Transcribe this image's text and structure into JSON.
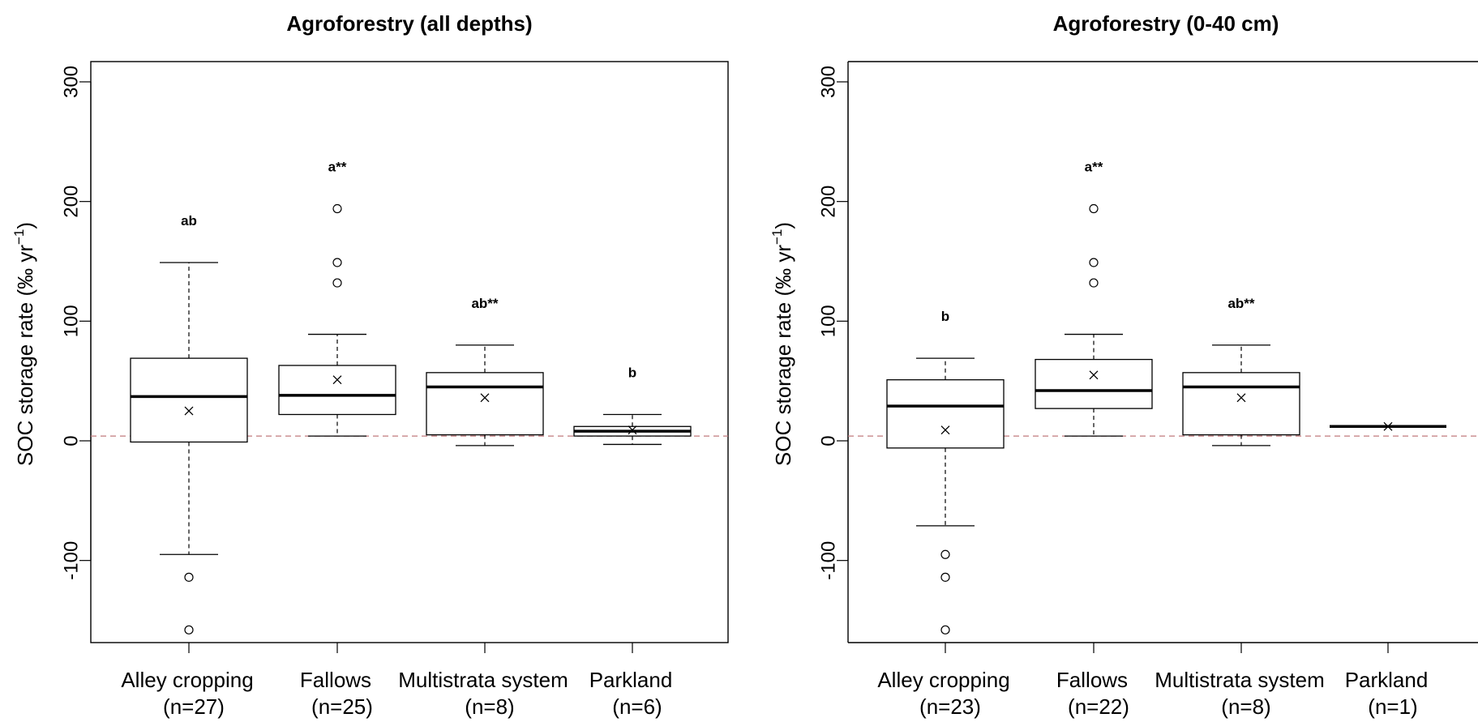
{
  "chart_data": [
    {
      "type": "box",
      "title": "Agroforestry (all depths)",
      "ylabel_main": "SOC storage rate (‰ yr",
      "ylabel_sup": "−1",
      "ylabel_close": ")",
      "ylim": [
        -165,
        320
      ],
      "yticks": [
        -100,
        0,
        100,
        200,
        300
      ],
      "ytick_labels": [
        "-100",
        "0",
        "100",
        "200",
        "300"
      ],
      "reference_line": 4,
      "categories": [
        {
          "label": "Alley cropping",
          "n": "(n=27)",
          "sig": "ab",
          "whisker_low": -95,
          "q1": -1,
          "median": 37,
          "q3": 69,
          "whisker_high": 149,
          "mean": 25,
          "outliers": [
            -114,
            -158
          ]
        },
        {
          "label": "Fallows",
          "n": "(n=25)",
          "sig": "a**",
          "whisker_low": 4,
          "q1": 22,
          "median": 38,
          "q3": 63,
          "whisker_high": 89,
          "mean": 51,
          "outliers": [
            194,
            149,
            132
          ]
        },
        {
          "label": "Multistrata system",
          "n": "(n=8)",
          "sig": "ab**",
          "whisker_low": -4,
          "q1": 5,
          "median": 45,
          "q3": 57,
          "whisker_high": 80,
          "mean": 36,
          "outliers": []
        },
        {
          "label": "Parkland",
          "n": "(n=6)",
          "sig": "b",
          "whisker_low": -3,
          "q1": 4,
          "median": 8,
          "q3": 12,
          "whisker_high": 22,
          "mean": 9,
          "outliers": []
        }
      ]
    },
    {
      "type": "box",
      "title": "Agroforestry (0-40 cm)",
      "ylabel_main": "SOC storage rate (‰ yr",
      "ylabel_sup": "−1",
      "ylabel_close": ")",
      "ylim": [
        -165,
        320
      ],
      "yticks": [
        -100,
        0,
        100,
        200,
        300
      ],
      "ytick_labels": [
        "-100",
        "0",
        "100",
        "200",
        "300"
      ],
      "reference_line": 4,
      "categories": [
        {
          "label": "Alley cropping",
          "n": "(n=23)",
          "sig": "b",
          "whisker_low": -71,
          "q1": -6,
          "median": 29,
          "q3": 51,
          "whisker_high": 69,
          "mean": 9,
          "outliers": [
            -95,
            -114,
            -158
          ]
        },
        {
          "label": "Fallows",
          "n": "(n=22)",
          "sig": "a**",
          "whisker_low": 4,
          "q1": 27,
          "median": 42,
          "q3": 68,
          "whisker_high": 89,
          "mean": 55,
          "outliers": [
            194,
            149,
            132
          ]
        },
        {
          "label": "Multistrata system",
          "n": "(n=8)",
          "sig": "ab**",
          "whisker_low": -4,
          "q1": 5,
          "median": 45,
          "q3": 57,
          "whisker_high": 80,
          "mean": 36,
          "outliers": []
        },
        {
          "label": "Parkland",
          "n": "(n=1)",
          "sig": "",
          "whisker_low": 12,
          "q1": 12,
          "median": 12,
          "q3": 12,
          "whisker_high": 12,
          "mean": 12,
          "outliers": []
        }
      ]
    }
  ],
  "colors": {
    "axis": "#000000",
    "reference_line": "#c0787c"
  }
}
